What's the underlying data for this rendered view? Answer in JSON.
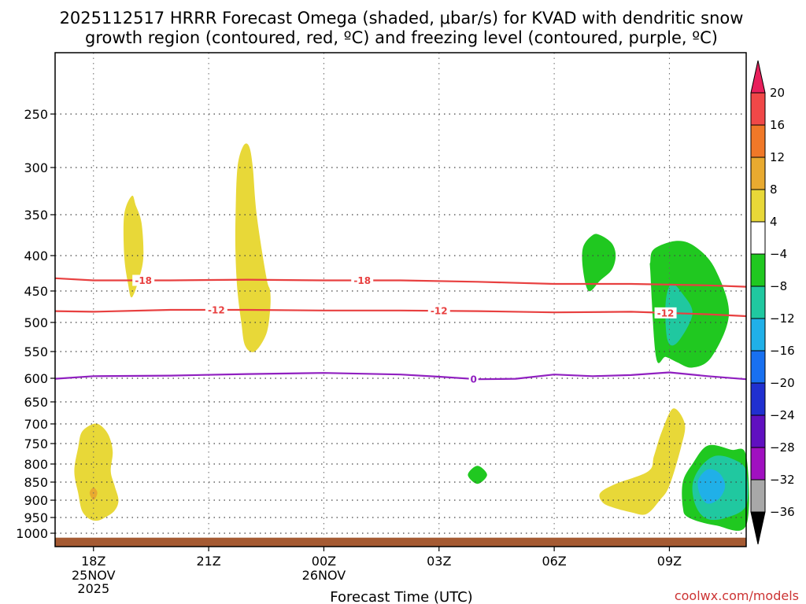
{
  "chart_data": {
    "type": "time-height contour",
    "title_line1": "2025112517 HRRR Forecast Omega (shaded, μbar/s) for KVAD with dendritic snow",
    "title_line2": "growth region (contoured, red, ºC) and freezing level (contoured, purple, ºC)",
    "xlabel": "Forecast Time (UTC)",
    "x_unit": "hours since 18Z 25NOV",
    "xlim": [
      -1,
      17
    ],
    "x_ticks": [
      {
        "x": 0,
        "label": "18Z",
        "sub": [
          "25NOV",
          "2025"
        ]
      },
      {
        "x": 3,
        "label": "21Z",
        "sub": []
      },
      {
        "x": 6,
        "label": "00Z",
        "sub": [
          "26NOV"
        ]
      },
      {
        "x": 9,
        "label": "03Z",
        "sub": []
      },
      {
        "x": 12,
        "label": "06Z",
        "sub": []
      },
      {
        "x": 15,
        "label": "09Z",
        "sub": []
      }
    ],
    "y_unit": "hPa",
    "ylim": [
      1015,
      200
    ],
    "y_ticks": [
      250,
      300,
      350,
      400,
      450,
      500,
      550,
      600,
      650,
      700,
      750,
      800,
      850,
      900,
      950,
      1000
    ],
    "colorbar": {
      "labels": [
        "20",
        "16",
        "12",
        "8",
        "4",
        "−4",
        "−8",
        "−12",
        "−16",
        "−20",
        "−24",
        "−28",
        "−32",
        "−36"
      ],
      "colors": [
        "#e8205c",
        "#f04848",
        "#f07828",
        "#e8aa30",
        "#e8d838",
        "#ffffff",
        "#20c820",
        "#20c8a0",
        "#20b0e8",
        "#1870f0",
        "#2030d0",
        "#6010c0",
        "#a010c0",
        "#a8a8a8",
        "#000000"
      ]
    },
    "contours": [
      {
        "name": "-18C",
        "label": "-18",
        "color": "#e84040",
        "x": [
          -1,
          0,
          2,
          4,
          6,
          8,
          10,
          12,
          14,
          16,
          17
        ],
        "p": [
          432,
          435,
          435,
          434,
          435,
          435,
          437,
          440,
          440,
          442,
          444
        ],
        "label_x": [
          1.3,
          7
        ]
      },
      {
        "name": "-12C",
        "label": "-12",
        "color": "#e84040",
        "x": [
          -1,
          0,
          2,
          4,
          6,
          8,
          10,
          12,
          14,
          16,
          17
        ],
        "p": [
          482,
          483,
          480,
          480,
          481,
          481,
          482,
          484,
          483,
          487,
          490
        ],
        "label_x": [
          3.2,
          9,
          14.9
        ]
      },
      {
        "name": "0C",
        "label": "0",
        "color": "#9020c0",
        "x": [
          -1,
          0,
          2,
          4,
          6,
          8,
          9,
          10,
          11,
          12,
          13,
          14,
          15,
          16,
          17
        ],
        "p": [
          601,
          596,
          595,
          592,
          590,
          593,
          597,
          602,
          601,
          593,
          596,
          594,
          589,
          596,
          602
        ],
        "label_x": [
          9.9
        ]
      }
    ],
    "omega_regions": [
      {
        "name": "lo-18z",
        "value": 4,
        "x": [
          0,
          -0.3,
          -0.4,
          -0.5,
          -0.4,
          -0.3,
          -0.1,
          0.1,
          0.3,
          0.55,
          0.65,
          0.55,
          0.45,
          0.5,
          0.4,
          0.2,
          0
        ],
        "p": [
          700,
          720,
          760,
          820,
          880,
          930,
          955,
          960,
          950,
          930,
          900,
          860,
          820,
          770,
          730,
          705,
          700
        ]
      },
      {
        "name": "lo-18z-core",
        "value": 8,
        "x": [
          0,
          -0.1,
          0,
          0.1,
          0
        ],
        "p": [
          865,
          880,
          900,
          880,
          865
        ]
      },
      {
        "name": "hi-19z",
        "value": 4,
        "x": [
          1,
          0.8,
          0.8,
          0.9,
          1.0,
          1.2,
          1.3,
          1.25,
          1.1,
          1
        ],
        "p": [
          330,
          350,
          400,
          440,
          460,
          430,
          400,
          360,
          340,
          330
        ]
      },
      {
        "name": "big-22z",
        "value": 4,
        "x": [
          3.9,
          3.75,
          3.7,
          3.7,
          3.75,
          3.85,
          3.95,
          4.2,
          4.5,
          4.6,
          4.6,
          4.5,
          4.25,
          4.15,
          4.05,
          3.9
        ],
        "p": [
          280,
          300,
          350,
          400,
          450,
          500,
          540,
          550,
          520,
          480,
          450,
          430,
          350,
          300,
          280,
          280
        ]
      },
      {
        "name": "07z-hi",
        "value": -4,
        "x": [
          13.0,
          12.75,
          12.75,
          12.9,
          13.2,
          13.5,
          13.6,
          13.5,
          13.2,
          13.0
        ],
        "p": [
          375,
          390,
          420,
          450,
          435,
          420,
          400,
          385,
          375,
          375
        ]
      },
      {
        "name": "08z-mid",
        "value": 4,
        "x": [
          14.75,
          14.6,
          14.8,
          15.0,
          15.0,
          14.9,
          14.75
        ],
        "p": [
          500,
          525,
          540,
          545,
          510,
          500,
          500
        ]
      },
      {
        "name": "09z-hi",
        "value": -4,
        "x": [
          14.5,
          14.65,
          14.9,
          15.2,
          15.6,
          16.1,
          16.55,
          16.2,
          15.7,
          15.2,
          14.6,
          14.5,
          14.5
        ],
        "p": [
          420,
          560,
          560,
          570,
          580,
          560,
          487,
          420,
          390,
          382,
          392,
          410,
          420
        ]
      },
      {
        "name": "09z-hi-core",
        "value": -8,
        "x": [
          15.05,
          14.9,
          14.95,
          15.2,
          15.6,
          15.35,
          15.05
        ],
        "p": [
          440,
          470,
          530,
          535,
          487,
          455,
          440
        ]
      },
      {
        "name": "05z-lo",
        "value": -4,
        "x": [
          10.0,
          9.75,
          10.0,
          10.25,
          10.0
        ],
        "p": [
          805,
          830,
          855,
          830,
          805
        ]
      },
      {
        "name": "08z-lo",
        "value": 4,
        "x": [
          15.1,
          14.8,
          14.6,
          14.45,
          13.6,
          13.2,
          13.25,
          13.5,
          14.0,
          14.4,
          14.75,
          15.0,
          15.3,
          15.4,
          15.1
        ],
        "p": [
          665,
          720,
          780,
          820,
          855,
          880,
          905,
          920,
          935,
          940,
          900,
          860,
          760,
          700,
          665
        ]
      },
      {
        "name": "10z-lo",
        "value": -4,
        "x": [
          16.0,
          15.6,
          15.35,
          15.35,
          15.5,
          16.2,
          17,
          17,
          16.6,
          16.0
        ],
        "p": [
          755,
          800,
          850,
          920,
          950,
          975,
          975,
          780,
          765,
          755
        ]
      },
      {
        "name": "10z-lo-mid",
        "value": -8,
        "x": [
          16.2,
          15.8,
          15.6,
          15.7,
          16.0,
          16.5,
          17,
          17,
          16.7,
          16.2
        ],
        "p": [
          780,
          810,
          860,
          920,
          955,
          950,
          915,
          820,
          790,
          780
        ]
      },
      {
        "name": "10z-lo-core",
        "value": -12,
        "x": [
          16.0,
          15.75,
          15.8,
          16.0,
          16.3,
          16.45,
          16.3,
          16.0
        ],
        "p": [
          815,
          845,
          885,
          910,
          895,
          860,
          825,
          815
        ]
      }
    ],
    "ground": {
      "from_p": 1005,
      "to_p": 1015,
      "color": "#a55a32"
    }
  },
  "credit": "coolwx.com/models"
}
